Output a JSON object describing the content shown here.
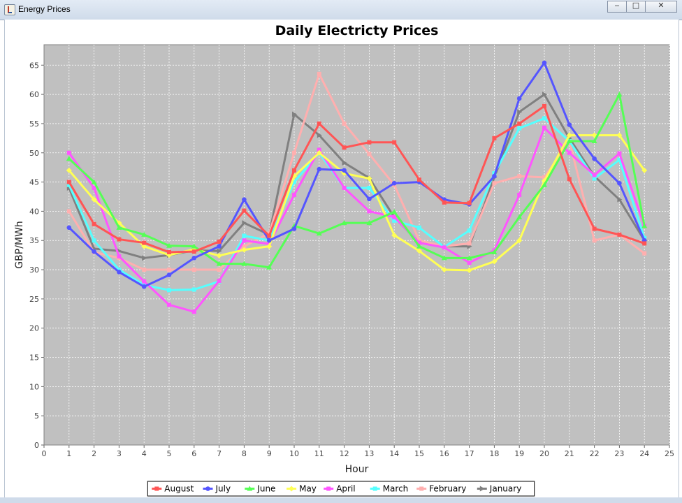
{
  "window": {
    "title": "Energy Prices",
    "controls": [
      "minimize",
      "maximize",
      "close"
    ]
  },
  "chart_data": {
    "type": "line",
    "title": "Daily Electricty Prices",
    "xlabel": "Hour",
    "ylabel": "GBP/MWh",
    "xlim": [
      0,
      25
    ],
    "ylim": [
      0,
      68.5
    ],
    "xticks": [
      0,
      1,
      2,
      3,
      4,
      5,
      6,
      7,
      8,
      9,
      10,
      11,
      12,
      13,
      14,
      15,
      16,
      17,
      18,
      19,
      20,
      21,
      22,
      23,
      24,
      25
    ],
    "yticks": [
      0,
      5,
      10,
      15,
      20,
      25,
      30,
      35,
      40,
      45,
      50,
      55,
      60,
      65
    ],
    "grid": true,
    "background": "#c0c0c0",
    "legend_position": "bottom",
    "x": [
      1,
      2,
      3,
      4,
      5,
      6,
      7,
      8,
      9,
      10,
      11,
      12,
      13,
      14,
      15,
      16,
      17,
      18,
      19,
      20,
      21,
      22,
      23,
      24
    ],
    "series": [
      {
        "name": "August",
        "color": "#ff5555",
        "marker": "square",
        "values": [
          45,
          37.8,
          35.2,
          34.6,
          33,
          33.1,
          34.8,
          40.1,
          35.8,
          47,
          55,
          50.9,
          51.8,
          51.8,
          45.4,
          41.5,
          41.4,
          52.5,
          55,
          58,
          45.5,
          37,
          36,
          34.5
        ]
      },
      {
        "name": "July",
        "color": "#5555ff",
        "marker": "circle",
        "values": [
          37.2,
          33.1,
          29.6,
          27.1,
          29.1,
          32,
          34,
          42,
          35,
          37,
          47.2,
          47,
          42.1,
          44.8,
          45,
          42,
          41.2,
          46,
          59.3,
          65.4,
          54.8,
          49,
          44.8,
          35
        ]
      },
      {
        "name": "June",
        "color": "#55ff55",
        "marker": "triangle-up",
        "values": [
          49,
          45,
          37.2,
          36,
          34.1,
          34,
          31,
          31,
          30.4,
          37.5,
          36.2,
          38,
          38,
          39.9,
          34,
          32,
          32,
          33,
          39,
          44.5,
          52,
          52,
          60,
          37.5
        ]
      },
      {
        "name": "May",
        "color": "#ffff55",
        "marker": "diamond",
        "values": [
          47,
          42,
          38,
          34,
          32.5,
          33.5,
          32.4,
          33.4,
          34,
          46,
          50,
          46.5,
          45.6,
          35.9,
          33.2,
          30,
          29.9,
          31.4,
          35,
          45.2,
          53,
          53,
          53,
          47
        ]
      },
      {
        "name": "April",
        "color": "#ff55ff",
        "marker": "square",
        "values": [
          50,
          44,
          32.3,
          28,
          24,
          22.8,
          28.1,
          35,
          34.4,
          42.8,
          50.5,
          44,
          40,
          39,
          34.6,
          33.8,
          31.2,
          33.3,
          42.8,
          54.3,
          50,
          46.2,
          49.9,
          37.5
        ]
      },
      {
        "name": "March",
        "color": "#55ffff",
        "marker": "square",
        "values": [
          44.5,
          35,
          30,
          27.4,
          26.5,
          26.6,
          28,
          35.8,
          35,
          45,
          50,
          44,
          44,
          38.4,
          37.2,
          33.9,
          36.7,
          46.5,
          54.2,
          55.9,
          52,
          45.6,
          48.8,
          35.4
        ]
      },
      {
        "name": "February",
        "color": "#ffafaf",
        "marker": "square",
        "values": [
          40,
          33,
          32,
          30,
          30,
          30,
          30,
          34,
          36.2,
          50,
          63.5,
          55,
          49.8,
          44.5,
          35,
          34,
          34.5,
          44.8,
          46,
          45.8,
          52,
          35,
          36,
          32.8
        ]
      },
      {
        "name": "January",
        "color": "#808080",
        "marker": "triangle-right",
        "values": [
          44,
          33.6,
          33.2,
          32,
          32.5,
          33.3,
          33.2,
          38,
          36,
          56.6,
          53,
          48.3,
          45.7,
          39,
          34.6,
          34,
          34,
          45.8,
          57,
          60,
          52.5,
          46,
          42,
          35
        ]
      }
    ]
  }
}
